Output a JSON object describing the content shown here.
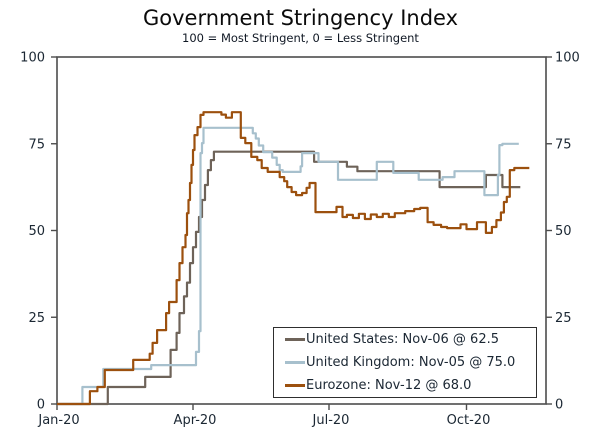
{
  "chart_data": {
    "type": "line",
    "title": "Government Stringency Index",
    "subtitle": "100 = Most Stringent, 0 = Less Stringent",
    "grid": false,
    "frame_color": "#4d4d4d",
    "text_color": "#1b2733",
    "y_axis": {
      "range": [
        0,
        100
      ],
      "ticks": [
        0,
        25,
        50,
        75,
        100
      ],
      "label_sides": "both"
    },
    "x_axis": {
      "unit": "days since Jan 1 2020",
      "range_days": [
        0,
        327
      ],
      "ticks": [
        {
          "label": "Jan-20",
          "day": 0
        },
        {
          "label": "Apr-20",
          "day": 91
        },
        {
          "label": "Jul-20",
          "day": 182
        },
        {
          "label": "Oct-20",
          "day": 274
        }
      ]
    },
    "legend": {
      "position": "lower-right"
    },
    "series": [
      {
        "name": "United States",
        "legend_label": "United States: Nov-06 @ 62.5",
        "last_date": "Nov-06",
        "last_value": 62.5,
        "color": "#6e6359",
        "end_day": 310,
        "points": [
          [
            0,
            0
          ],
          [
            34,
            4.9
          ],
          [
            59,
            7.8
          ],
          [
            76,
            15.6
          ],
          [
            80,
            20.5
          ],
          [
            82,
            26.2
          ],
          [
            85,
            31.0
          ],
          [
            87,
            35.0
          ],
          [
            89,
            40.6
          ],
          [
            91,
            45.2
          ],
          [
            93,
            49.6
          ],
          [
            95,
            53.9
          ],
          [
            97,
            58.8
          ],
          [
            99,
            63.1
          ],
          [
            101,
            67.4
          ],
          [
            103,
            70.3
          ],
          [
            105,
            72.7
          ],
          [
            172,
            69.8
          ],
          [
            194,
            68.4
          ],
          [
            201,
            67.1
          ],
          [
            256,
            62.5
          ],
          [
            287,
            66.0
          ],
          [
            298,
            62.5
          ]
        ]
      },
      {
        "name": "United Kingdom",
        "legend_label": "United Kingdom: Nov-05 @ 75.0",
        "last_date": "Nov-05",
        "last_value": 75.0,
        "color": "#a7c0cd",
        "end_day": 309,
        "points": [
          [
            0,
            0
          ],
          [
            17,
            4.9
          ],
          [
            31,
            10.1
          ],
          [
            63,
            11.2
          ],
          [
            93,
            15.0
          ],
          [
            95,
            21.0
          ],
          [
            96,
            72.3
          ],
          [
            97,
            75.2
          ],
          [
            98,
            79.6
          ],
          [
            131,
            78.0
          ],
          [
            133,
            76.5
          ],
          [
            135,
            74.5
          ],
          [
            138,
            72.6
          ],
          [
            144,
            71.0
          ],
          [
            147,
            68.9
          ],
          [
            149,
            67.4
          ],
          [
            151,
            66.9
          ],
          [
            163,
            68.5
          ],
          [
            164,
            72.3
          ],
          [
            175,
            69.8
          ],
          [
            188,
            64.6
          ],
          [
            214,
            69.8
          ],
          [
            225,
            66.6
          ],
          [
            242,
            64.6
          ],
          [
            258,
            65.4
          ],
          [
            266,
            67.1
          ],
          [
            286,
            60.2
          ],
          [
            295,
            66.0
          ],
          [
            296,
            74.6
          ],
          [
            298,
            75.0
          ]
        ]
      },
      {
        "name": "Eurozone",
        "legend_label": "Eurozone: Nov-12 @ 68.0",
        "last_date": "Nov-12",
        "last_value": 68.0,
        "color": "#9c500e",
        "end_day": 316,
        "points": [
          [
            0,
            0
          ],
          [
            22,
            3.7
          ],
          [
            27,
            4.9
          ],
          [
            32,
            9.8
          ],
          [
            51,
            12.7
          ],
          [
            62,
            14.5
          ],
          [
            64,
            17.6
          ],
          [
            67,
            21.3
          ],
          [
            73,
            26.2
          ],
          [
            75,
            29.4
          ],
          [
            80,
            35.7
          ],
          [
            82,
            40.6
          ],
          [
            84,
            45.2
          ],
          [
            86,
            48.7
          ],
          [
            87,
            55.0
          ],
          [
            88,
            58.8
          ],
          [
            89,
            63.7
          ],
          [
            90,
            68.9
          ],
          [
            91,
            73.2
          ],
          [
            92,
            77.5
          ],
          [
            94,
            79.8
          ],
          [
            96,
            83.3
          ],
          [
            98,
            84.1
          ],
          [
            110,
            83.4
          ],
          [
            113,
            82.5
          ],
          [
            117,
            84.1
          ],
          [
            123,
            76.7
          ],
          [
            126,
            75.2
          ],
          [
            130,
            71.2
          ],
          [
            134,
            70.3
          ],
          [
            137,
            68.0
          ],
          [
            141,
            66.9
          ],
          [
            149,
            65.4
          ],
          [
            152,
            64.2
          ],
          [
            154,
            62.5
          ],
          [
            157,
            61.1
          ],
          [
            160,
            60.2
          ],
          [
            164,
            60.8
          ],
          [
            167,
            62.3
          ],
          [
            169,
            63.7
          ],
          [
            173,
            55.3
          ],
          [
            187,
            56.8
          ],
          [
            191,
            53.9
          ],
          [
            194,
            54.5
          ],
          [
            198,
            53.6
          ],
          [
            202,
            54.8
          ],
          [
            206,
            53.3
          ],
          [
            210,
            54.6
          ],
          [
            214,
            53.9
          ],
          [
            218,
            54.8
          ],
          [
            222,
            53.9
          ],
          [
            226,
            55.0
          ],
          [
            233,
            55.6
          ],
          [
            239,
            56.2
          ],
          [
            243,
            56.5
          ],
          [
            248,
            52.4
          ],
          [
            252,
            51.6
          ],
          [
            257,
            51.0
          ],
          [
            261,
            50.7
          ],
          [
            270,
            51.8
          ],
          [
            274,
            50.4
          ],
          [
            281,
            52.4
          ],
          [
            287,
            49.3
          ],
          [
            291,
            51.0
          ],
          [
            294,
            53.0
          ],
          [
            297,
            55.2
          ],
          [
            299,
            58.2
          ],
          [
            301,
            59.7
          ],
          [
            303,
            67.4
          ],
          [
            306,
            68.0
          ]
        ]
      }
    ]
  }
}
